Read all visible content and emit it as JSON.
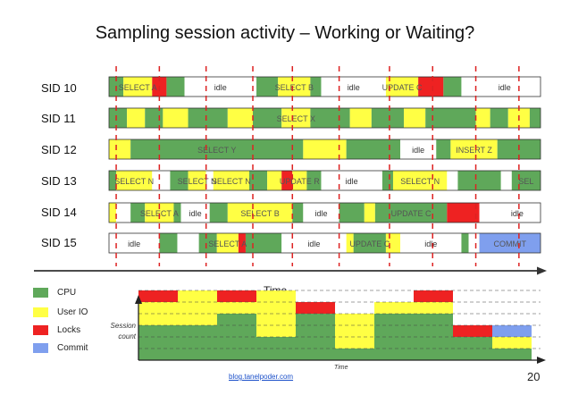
{
  "title": "Sampling session activity – Working or Waiting?",
  "colors": {
    "cpu": "#5fa85a",
    "user_io": "#ffff44",
    "locks": "#ee2222",
    "commit": "#7f9fee",
    "idle": "#ffffff",
    "sample_line": "#dd2222"
  },
  "sessions": [
    {
      "label": "SID 10",
      "segments": [
        {
          "start": 0,
          "end": 4,
          "state": "cpu"
        },
        {
          "start": 4,
          "end": 12,
          "state": "user_io",
          "text": "SELECT A"
        },
        {
          "start": 12,
          "end": 16,
          "state": "locks"
        },
        {
          "start": 16,
          "end": 21,
          "state": "cpu"
        },
        {
          "start": 21,
          "end": 41,
          "state": "idle",
          "text": "idle"
        },
        {
          "start": 41,
          "end": 47,
          "state": "cpu"
        },
        {
          "start": 47,
          "end": 56,
          "state": "user_io",
          "text": "SELECT B"
        },
        {
          "start": 56,
          "end": 59,
          "state": "cpu"
        },
        {
          "start": 59,
          "end": 77,
          "state": "idle",
          "text": "idle"
        },
        {
          "start": 77,
          "end": 86,
          "state": "user_io",
          "text": "UPDATE C"
        },
        {
          "start": 86,
          "end": 93,
          "state": "locks"
        },
        {
          "start": 93,
          "end": 98,
          "state": "cpu"
        },
        {
          "start": 98,
          "end": 100,
          "state": "idle"
        },
        {
          "start": 100,
          "end": 120,
          "state": "idle",
          "text": "idle"
        }
      ]
    },
    {
      "label": "SID 11",
      "segments": [
        {
          "start": 0,
          "end": 5,
          "state": "cpu"
        },
        {
          "start": 5,
          "end": 10,
          "state": "user_io"
        },
        {
          "start": 10,
          "end": 15,
          "state": "cpu"
        },
        {
          "start": 15,
          "end": 22,
          "state": "user_io"
        },
        {
          "start": 22,
          "end": 33,
          "state": "cpu"
        },
        {
          "start": 33,
          "end": 40,
          "state": "user_io"
        },
        {
          "start": 40,
          "end": 48,
          "state": "cpu"
        },
        {
          "start": 48,
          "end": 56,
          "state": "user_io",
          "text": "SELECT X"
        },
        {
          "start": 56,
          "end": 67,
          "state": "cpu"
        },
        {
          "start": 67,
          "end": 73,
          "state": "user_io"
        },
        {
          "start": 73,
          "end": 82,
          "state": "cpu"
        },
        {
          "start": 82,
          "end": 88,
          "state": "user_io"
        },
        {
          "start": 88,
          "end": 102,
          "state": "cpu"
        },
        {
          "start": 102,
          "end": 106,
          "state": "user_io"
        },
        {
          "start": 106,
          "end": 111,
          "state": "cpu"
        },
        {
          "start": 111,
          "end": 117,
          "state": "user_io"
        },
        {
          "start": 117,
          "end": 120,
          "state": "cpu"
        }
      ]
    },
    {
      "label": "SID 12",
      "segments": [
        {
          "start": 0,
          "end": 6,
          "state": "user_io"
        },
        {
          "start": 6,
          "end": 54,
          "state": "cpu",
          "text": "SELECT Y"
        },
        {
          "start": 54,
          "end": 66,
          "state": "user_io"
        },
        {
          "start": 66,
          "end": 81,
          "state": "cpu"
        },
        {
          "start": 81,
          "end": 91,
          "state": "idle",
          "text": "idle"
        },
        {
          "start": 91,
          "end": 95,
          "state": "cpu"
        },
        {
          "start": 95,
          "end": 108,
          "state": "user_io",
          "text": "INSERT Z"
        },
        {
          "start": 108,
          "end": 120,
          "state": "cpu"
        }
      ]
    },
    {
      "label": "SID 13",
      "segments": [
        {
          "start": 0,
          "end": 2,
          "state": "cpu"
        },
        {
          "start": 2,
          "end": 12,
          "state": "user_io",
          "text": "SELECT N"
        },
        {
          "start": 12,
          "end": 17,
          "state": "idle"
        },
        {
          "start": 17,
          "end": 22,
          "state": "cpu"
        },
        {
          "start": 22,
          "end": 27,
          "state": "user_io",
          "text": "SELECT N"
        },
        {
          "start": 27,
          "end": 29,
          "state": "idle"
        },
        {
          "start": 29,
          "end": 39,
          "state": "user_io",
          "text": "SELECT N"
        },
        {
          "start": 39,
          "end": 44,
          "state": "cpu"
        },
        {
          "start": 44,
          "end": 48,
          "state": "user_io"
        },
        {
          "start": 48,
          "end": 51,
          "state": "locks"
        },
        {
          "start": 51,
          "end": 55,
          "state": "user_io",
          "text": "UPDATE R"
        },
        {
          "start": 55,
          "end": 59,
          "state": "cpu"
        },
        {
          "start": 59,
          "end": 76,
          "state": "idle",
          "text": "idle"
        },
        {
          "start": 76,
          "end": 79,
          "state": "cpu"
        },
        {
          "start": 79,
          "end": 94,
          "state": "user_io",
          "text": "SELECT N"
        },
        {
          "start": 94,
          "end": 97,
          "state": "idle"
        },
        {
          "start": 97,
          "end": 109,
          "state": "cpu"
        },
        {
          "start": 109,
          "end": 112,
          "state": "idle"
        },
        {
          "start": 112,
          "end": 120,
          "state": "cpu",
          "text": "SEL"
        }
      ]
    },
    {
      "label": "SID 14",
      "segments": [
        {
          "start": 0,
          "end": 2,
          "state": "user_io"
        },
        {
          "start": 2,
          "end": 6,
          "state": "idle"
        },
        {
          "start": 6,
          "end": 10,
          "state": "cpu"
        },
        {
          "start": 10,
          "end": 18,
          "state": "user_io",
          "text": "SELECT A"
        },
        {
          "start": 18,
          "end": 20,
          "state": "cpu"
        },
        {
          "start": 20,
          "end": 28,
          "state": "idle",
          "text": "idle"
        },
        {
          "start": 28,
          "end": 33,
          "state": "cpu"
        },
        {
          "start": 33,
          "end": 51,
          "state": "user_io",
          "text": "SELECT B"
        },
        {
          "start": 51,
          "end": 54,
          "state": "cpu"
        },
        {
          "start": 54,
          "end": 64,
          "state": "idle",
          "text": "idle"
        },
        {
          "start": 64,
          "end": 71,
          "state": "cpu"
        },
        {
          "start": 71,
          "end": 74,
          "state": "user_io"
        },
        {
          "start": 74,
          "end": 94,
          "state": "cpu",
          "text": "UPDATE C"
        },
        {
          "start": 94,
          "end": 103,
          "state": "locks"
        },
        {
          "start": 103,
          "end": 107,
          "state": "idle"
        },
        {
          "start": 107,
          "end": 120,
          "state": "idle",
          "text": "idle"
        }
      ]
    },
    {
      "label": "SID 15",
      "segments": [
        {
          "start": 0,
          "end": 14,
          "state": "idle",
          "text": "idle"
        },
        {
          "start": 14,
          "end": 19,
          "state": "cpu"
        },
        {
          "start": 19,
          "end": 25,
          "state": "idle"
        },
        {
          "start": 25,
          "end": 30,
          "state": "cpu"
        },
        {
          "start": 30,
          "end": 36,
          "state": "user_io",
          "text": "SELECT A"
        },
        {
          "start": 36,
          "end": 38,
          "state": "locks"
        },
        {
          "start": 38,
          "end": 48,
          "state": "cpu"
        },
        {
          "start": 48,
          "end": 66,
          "state": "idle",
          "text": "idle"
        },
        {
          "start": 66,
          "end": 68,
          "state": "user_io"
        },
        {
          "start": 68,
          "end": 77,
          "state": "cpu",
          "text": "UPDATE C"
        },
        {
          "start": 77,
          "end": 81,
          "state": "user_io"
        },
        {
          "start": 81,
          "end": 98,
          "state": "idle",
          "text": "idle"
        },
        {
          "start": 98,
          "end": 100,
          "state": "cpu"
        },
        {
          "start": 100,
          "end": 103,
          "state": "idle"
        },
        {
          "start": 103,
          "end": 120,
          "state": "commit",
          "text": "COMMIT"
        }
      ]
    }
  ],
  "sample_times": [
    2,
    14,
    27,
    40,
    51,
    64,
    78,
    90,
    102,
    114
  ],
  "time_label": "Time",
  "legend": [
    {
      "key": "cpu",
      "label": "CPU"
    },
    {
      "key": "user_io",
      "label": "User IO"
    },
    {
      "key": "locks",
      "label": "Locks"
    },
    {
      "key": "commit",
      "label": "Commit"
    }
  ],
  "session_count": {
    "ylabel": "Session count",
    "xlabel": "Time",
    "max": 6,
    "samples": [
      {
        "cpu": 3,
        "user_io": 2,
        "locks": 1,
        "commit": 0
      },
      {
        "cpu": 3,
        "user_io": 3,
        "locks": 0,
        "commit": 0
      },
      {
        "cpu": 4,
        "user_io": 1,
        "locks": 1,
        "commit": 0
      },
      {
        "cpu": 2,
        "user_io": 4,
        "locks": 0,
        "commit": 0
      },
      {
        "cpu": 4,
        "user_io": 0,
        "locks": 1,
        "commit": 0
      },
      {
        "cpu": 1,
        "user_io": 3,
        "locks": 0,
        "commit": 0
      },
      {
        "cpu": 4,
        "user_io": 1,
        "locks": 0,
        "commit": 0
      },
      {
        "cpu": 4,
        "user_io": 1,
        "locks": 1,
        "commit": 0
      },
      {
        "cpu": 2,
        "user_io": 0,
        "locks": 1,
        "commit": 0
      },
      {
        "cpu": 1,
        "user_io": 1,
        "locks": 0,
        "commit": 1
      }
    ]
  },
  "footer": {
    "blog": "blog.tanelpoder.com",
    "page": "20"
  }
}
